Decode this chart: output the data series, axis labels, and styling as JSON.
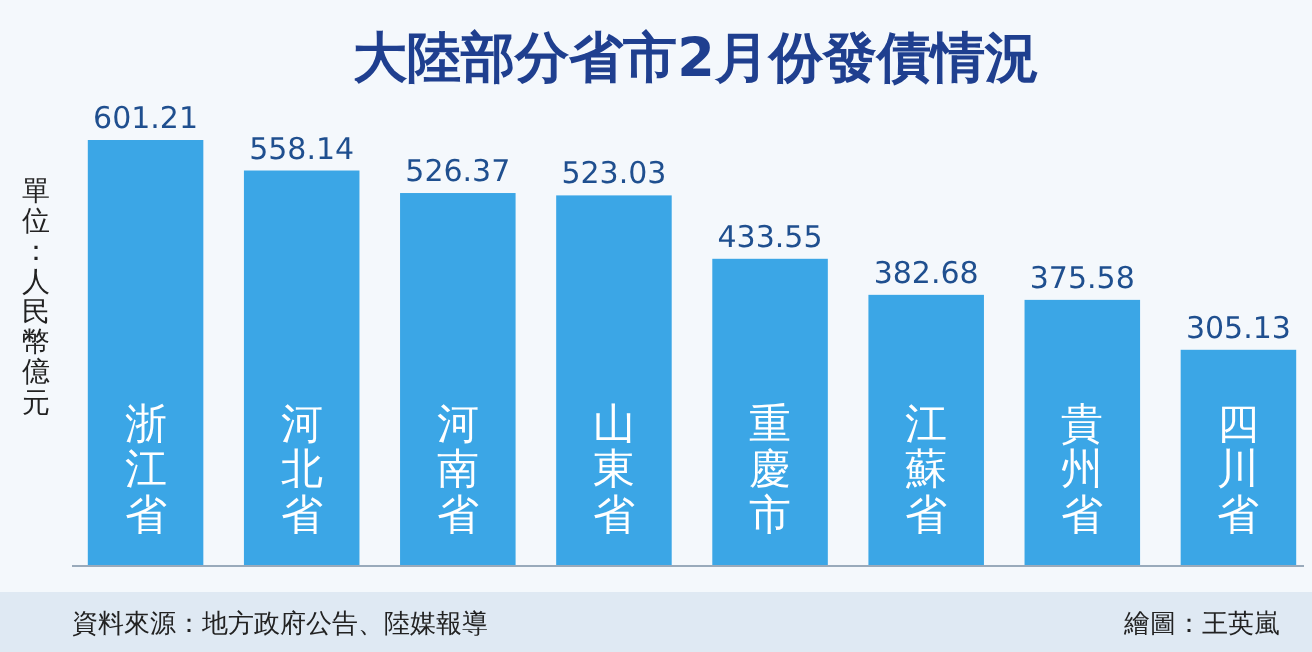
{
  "chart_data": {
    "type": "bar",
    "title": "大陸部分省市2月份發債情況",
    "ylabel": "單位：人民幣億元",
    "categories": [
      "浙江省",
      "河北省",
      "河南省",
      "山東省",
      "重慶市",
      "江蘇省",
      "貴州省",
      "四川省"
    ],
    "values": [
      601.21,
      558.14,
      526.37,
      523.03,
      433.55,
      382.68,
      375.58,
      305.13
    ],
    "color": "#3ba6e6",
    "data_labels": true,
    "annotations": [
      "資料來源：地方政府公告、陸媒報導",
      "繪圖：王英嵐"
    ]
  }
}
